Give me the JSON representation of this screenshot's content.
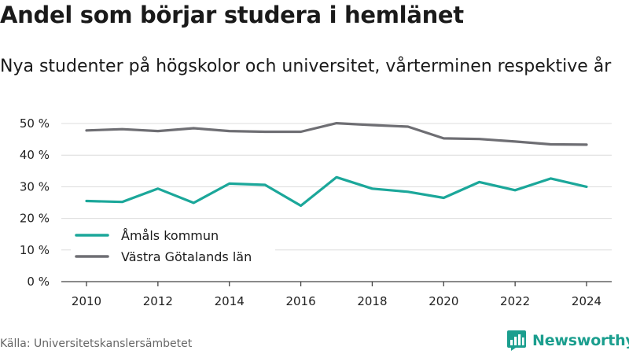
{
  "header": {
    "title": "Andel som börjar studera i hemlänet",
    "subtitle": "Nya studenter på högskolor och universitet, vårterminen respektive år"
  },
  "footer": {
    "source": "Källa: Universitetskanslersämbetet",
    "brand": "Newsworthy",
    "brand_icon": "bar-chart-icon",
    "brand_color": "#1b9e8e"
  },
  "chart_data": {
    "type": "line",
    "x": [
      2010,
      2011,
      2012,
      2013,
      2014,
      2015,
      2016,
      2017,
      2018,
      2019,
      2020,
      2021,
      2022,
      2023,
      2024
    ],
    "xticks": [
      "2010",
      "2012",
      "2014",
      "2016",
      "2018",
      "2020",
      "2022",
      "2024"
    ],
    "yticks": [
      "0 %",
      "10 %",
      "20 %",
      "30 %",
      "40 %",
      "50 %"
    ],
    "ylim": [
      0,
      50
    ],
    "grid": true,
    "legend_position": "bottom-left",
    "series": [
      {
        "name": "Åmåls kommun",
        "color": "#1ba79a",
        "values": [
          25.5,
          25.2,
          29.4,
          24.9,
          31.0,
          30.6,
          24.0,
          33.0,
          29.4,
          28.4,
          26.5,
          31.5,
          28.9,
          32.6,
          30.0
        ]
      },
      {
        "name": "Västra Götalands län",
        "color": "#6e6e73",
        "values": [
          47.8,
          48.2,
          47.6,
          48.5,
          47.6,
          47.4,
          47.4,
          50.1,
          49.5,
          49.0,
          45.3,
          45.1,
          44.3,
          43.4,
          43.3
        ]
      }
    ]
  }
}
